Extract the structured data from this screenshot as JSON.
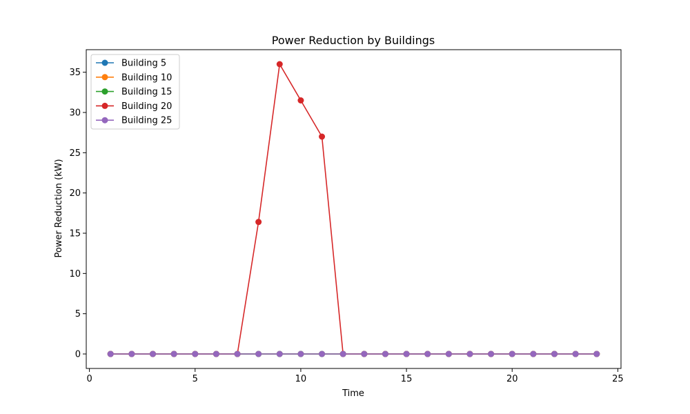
{
  "chart_data": {
    "type": "line",
    "title": "Power Reduction by Buildings",
    "xlabel": "Time",
    "ylabel": "Power Reduction (kW)",
    "xlim": [
      -0.15,
      25.15
    ],
    "ylim": [
      -1.8,
      37.8
    ],
    "xticks": [
      0,
      5,
      10,
      15,
      20,
      25
    ],
    "yticks": [
      0,
      5,
      10,
      15,
      20,
      25,
      30,
      35
    ],
    "grid": false,
    "legend_position": "upper-left",
    "x": [
      1,
      2,
      3,
      4,
      5,
      6,
      7,
      8,
      9,
      10,
      11,
      12,
      13,
      14,
      15,
      16,
      17,
      18,
      19,
      20,
      21,
      22,
      23,
      24
    ],
    "series": [
      {
        "name": "Building 5",
        "color": "#1f77b4",
        "values": [
          0,
          0,
          0,
          0,
          0,
          0,
          0,
          0,
          0,
          0,
          0,
          0,
          0,
          0,
          0,
          0,
          0,
          0,
          0,
          0,
          0,
          0,
          0,
          0
        ]
      },
      {
        "name": "Building 10",
        "color": "#ff7f0e",
        "values": [
          0,
          0,
          0,
          0,
          0,
          0,
          0,
          0,
          0,
          0,
          0,
          0,
          0,
          0,
          0,
          0,
          0,
          0,
          0,
          0,
          0,
          0,
          0,
          0
        ]
      },
      {
        "name": "Building 15",
        "color": "#2ca02c",
        "values": [
          0,
          0,
          0,
          0,
          0,
          0,
          0,
          0,
          0,
          0,
          0,
          0,
          0,
          0,
          0,
          0,
          0,
          0,
          0,
          0,
          0,
          0,
          0,
          0
        ]
      },
      {
        "name": "Building 20",
        "color": "#d62728",
        "values": [
          0,
          0,
          0,
          0,
          0,
          0,
          0,
          16.4,
          36.0,
          31.5,
          27.0,
          0,
          0,
          0,
          0,
          0,
          0,
          0,
          0,
          0,
          0,
          0,
          0,
          0
        ]
      },
      {
        "name": "Building 25",
        "color": "#9467bd",
        "values": [
          0,
          0,
          0,
          0,
          0,
          0,
          0,
          0,
          0,
          0,
          0,
          0,
          0,
          0,
          0,
          0,
          0,
          0,
          0,
          0,
          0,
          0,
          0,
          0
        ]
      }
    ]
  }
}
